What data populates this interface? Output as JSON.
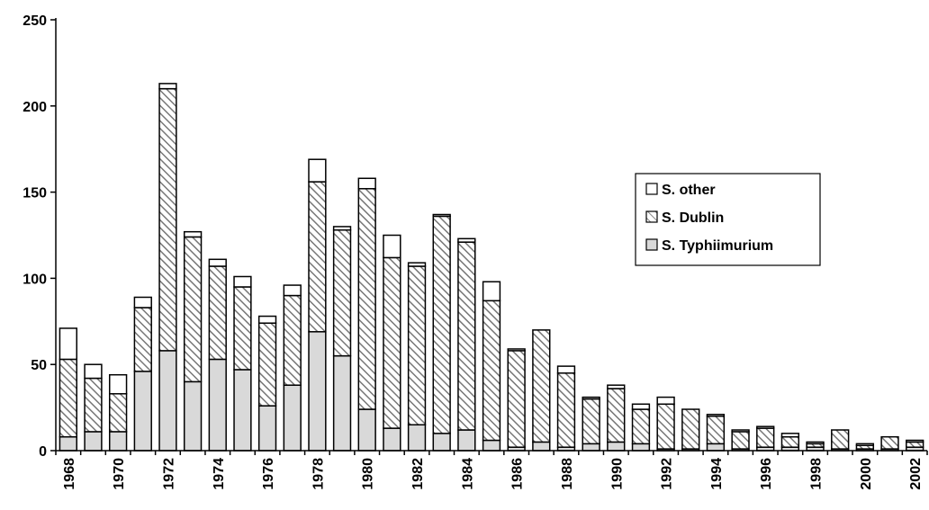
{
  "chart_data": {
    "type": "bar",
    "stacked": true,
    "title": "",
    "xlabel": "",
    "ylabel": "",
    "ylim": [
      0,
      250
    ],
    "yticks": [
      0,
      50,
      100,
      150,
      200,
      250
    ],
    "categories": [
      1968,
      1969,
      1970,
      1971,
      1972,
      1973,
      1974,
      1975,
      1976,
      1977,
      1978,
      1979,
      1980,
      1981,
      1982,
      1983,
      1984,
      1985,
      1986,
      1987,
      1988,
      1989,
      1990,
      1991,
      1992,
      1993,
      1994,
      1995,
      1996,
      1997,
      1998,
      1999,
      2000,
      2001,
      2002
    ],
    "x_tick_labels": [
      "1968",
      "1970",
      "1972",
      "1974",
      "1976",
      "1978",
      "1980",
      "1982",
      "1984",
      "1986",
      "1988",
      "1990",
      "1992",
      "1994",
      "1996",
      "1998",
      "2000",
      "2002"
    ],
    "series": [
      {
        "name": "S. Typhiimurium",
        "fill": "light-gray",
        "values": [
          8,
          11,
          11,
          46,
          58,
          40,
          53,
          47,
          26,
          38,
          69,
          55,
          24,
          13,
          15,
          10,
          12,
          6,
          2,
          5,
          2,
          4,
          5,
          4,
          1,
          1,
          4,
          1,
          2,
          2,
          2,
          1,
          1,
          1,
          2
        ]
      },
      {
        "name": "S. Dublin",
        "fill": "diagonal-hatch",
        "values": [
          45,
          31,
          22,
          37,
          152,
          84,
          54,
          48,
          48,
          52,
          87,
          73,
          128,
          99,
          92,
          126,
          109,
          81,
          56,
          65,
          43,
          26,
          31,
          20,
          26,
          23,
          16,
          10,
          11,
          6,
          2,
          11,
          2,
          7,
          3
        ]
      },
      {
        "name": "S. other",
        "fill": "white",
        "values": [
          18,
          8,
          11,
          6,
          3,
          3,
          4,
          6,
          4,
          6,
          13,
          2,
          6,
          13,
          2,
          1,
          2,
          11,
          1,
          0,
          4,
          1,
          2,
          3,
          4,
          0,
          1,
          1,
          1,
          2,
          1,
          0,
          1,
          0,
          1
        ]
      }
    ],
    "legend": {
      "placement": "right",
      "entries": [
        "S. other",
        "S. Dublin",
        "S. Typhiimurium"
      ]
    },
    "grid": false,
    "colors": {
      "typhiimurium_fill": "#d9d9d9",
      "dublin_stroke": "#6e6e6e",
      "other_fill": "#ffffff",
      "outline": "#000000"
    }
  }
}
